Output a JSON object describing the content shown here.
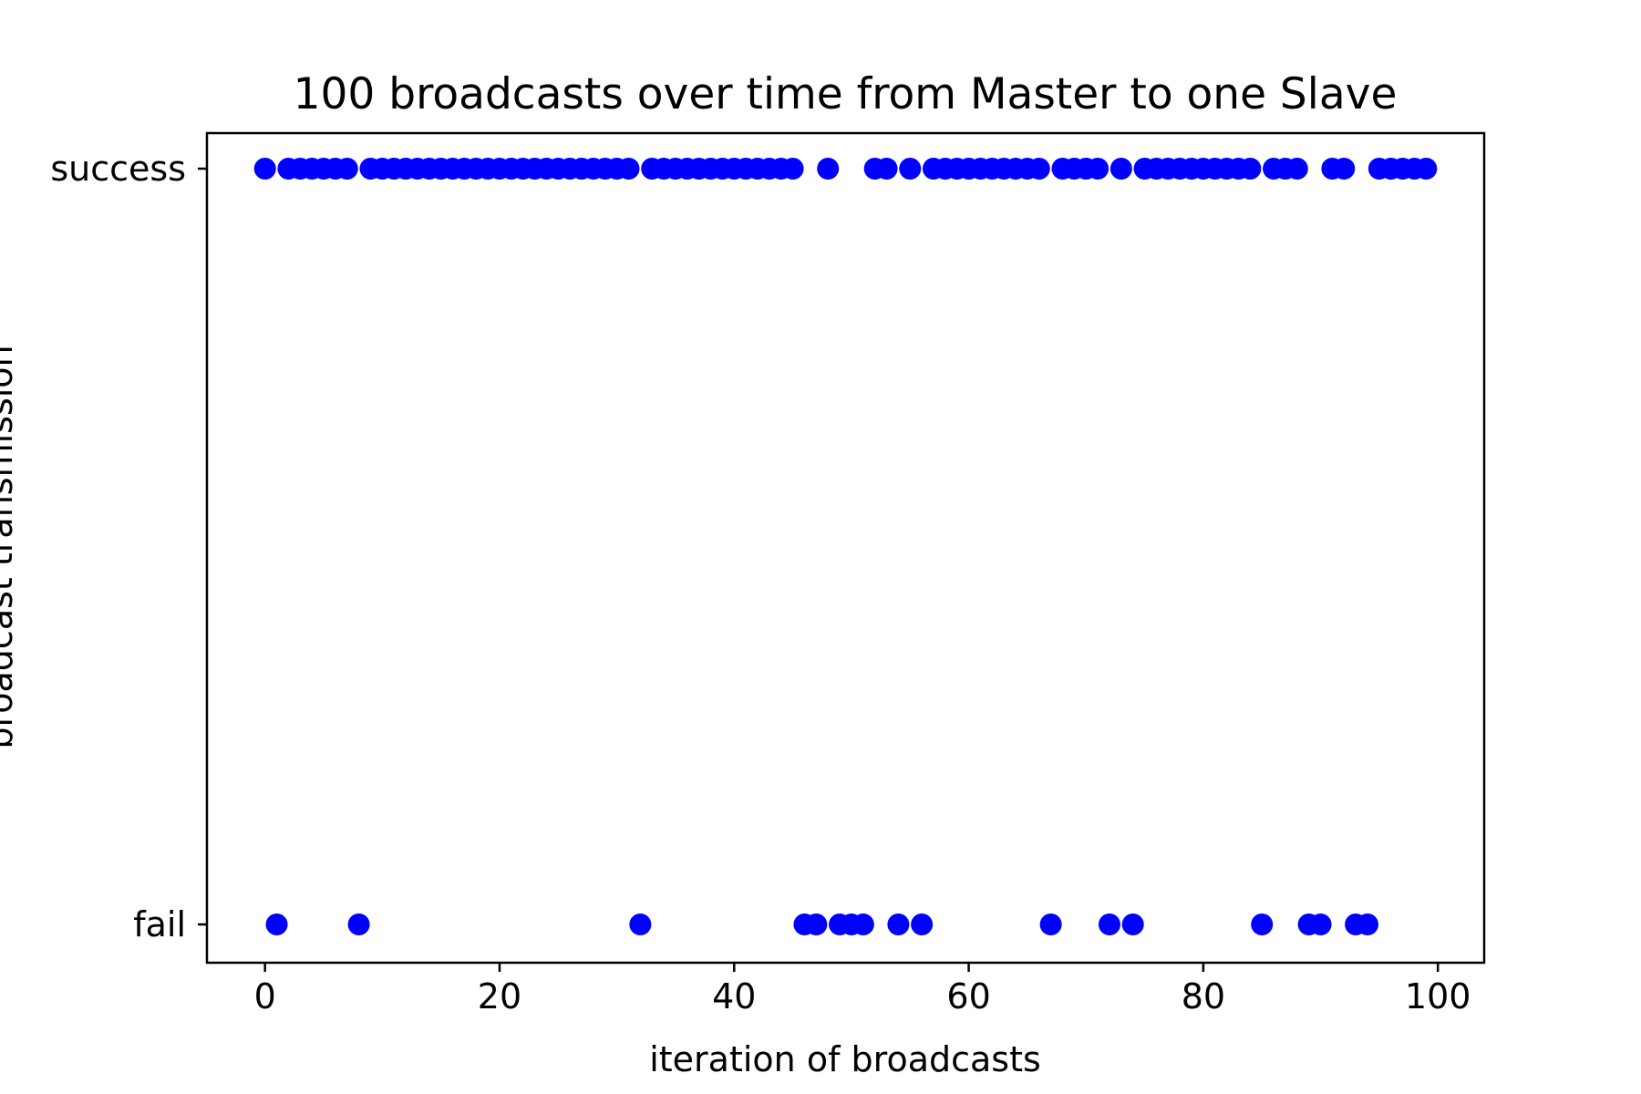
{
  "chart_data": {
    "type": "scatter",
    "title": "100 broadcasts over time from Master to one Slave",
    "xlabel": "iteration of broadcasts",
    "ylabel": "broadcast transmission",
    "xlim": [
      -4.95,
      103.95
    ],
    "x_ticks": [
      0,
      20,
      40,
      60,
      80,
      100
    ],
    "y_categories": [
      "fail",
      "success"
    ],
    "grid": false,
    "marker_color": "#0000ff",
    "series": [
      {
        "points": [
          {
            "x": 0,
            "y": "success"
          },
          {
            "x": 1,
            "y": "fail"
          },
          {
            "x": 2,
            "y": "success"
          },
          {
            "x": 3,
            "y": "success"
          },
          {
            "x": 4,
            "y": "success"
          },
          {
            "x": 5,
            "y": "success"
          },
          {
            "x": 6,
            "y": "success"
          },
          {
            "x": 7,
            "y": "success"
          },
          {
            "x": 8,
            "y": "fail"
          },
          {
            "x": 9,
            "y": "success"
          },
          {
            "x": 10,
            "y": "success"
          },
          {
            "x": 11,
            "y": "success"
          },
          {
            "x": 12,
            "y": "success"
          },
          {
            "x": 13,
            "y": "success"
          },
          {
            "x": 14,
            "y": "success"
          },
          {
            "x": 15,
            "y": "success"
          },
          {
            "x": 16,
            "y": "success"
          },
          {
            "x": 17,
            "y": "success"
          },
          {
            "x": 18,
            "y": "success"
          },
          {
            "x": 19,
            "y": "success"
          },
          {
            "x": 20,
            "y": "success"
          },
          {
            "x": 21,
            "y": "success"
          },
          {
            "x": 22,
            "y": "success"
          },
          {
            "x": 23,
            "y": "success"
          },
          {
            "x": 24,
            "y": "success"
          },
          {
            "x": 25,
            "y": "success"
          },
          {
            "x": 26,
            "y": "success"
          },
          {
            "x": 27,
            "y": "success"
          },
          {
            "x": 28,
            "y": "success"
          },
          {
            "x": 29,
            "y": "success"
          },
          {
            "x": 30,
            "y": "success"
          },
          {
            "x": 31,
            "y": "success"
          },
          {
            "x": 32,
            "y": "fail"
          },
          {
            "x": 33,
            "y": "success"
          },
          {
            "x": 34,
            "y": "success"
          },
          {
            "x": 35,
            "y": "success"
          },
          {
            "x": 36,
            "y": "success"
          },
          {
            "x": 37,
            "y": "success"
          },
          {
            "x": 38,
            "y": "success"
          },
          {
            "x": 39,
            "y": "success"
          },
          {
            "x": 40,
            "y": "success"
          },
          {
            "x": 41,
            "y": "success"
          },
          {
            "x": 42,
            "y": "success"
          },
          {
            "x": 43,
            "y": "success"
          },
          {
            "x": 44,
            "y": "success"
          },
          {
            "x": 45,
            "y": "success"
          },
          {
            "x": 46,
            "y": "fail"
          },
          {
            "x": 47,
            "y": "fail"
          },
          {
            "x": 48,
            "y": "success"
          },
          {
            "x": 49,
            "y": "fail"
          },
          {
            "x": 50,
            "y": "fail"
          },
          {
            "x": 51,
            "y": "fail"
          },
          {
            "x": 52,
            "y": "success"
          },
          {
            "x": 53,
            "y": "success"
          },
          {
            "x": 54,
            "y": "fail"
          },
          {
            "x": 55,
            "y": "success"
          },
          {
            "x": 56,
            "y": "fail"
          },
          {
            "x": 57,
            "y": "success"
          },
          {
            "x": 58,
            "y": "success"
          },
          {
            "x": 59,
            "y": "success"
          },
          {
            "x": 60,
            "y": "success"
          },
          {
            "x": 61,
            "y": "success"
          },
          {
            "x": 62,
            "y": "success"
          },
          {
            "x": 63,
            "y": "success"
          },
          {
            "x": 64,
            "y": "success"
          },
          {
            "x": 65,
            "y": "success"
          },
          {
            "x": 66,
            "y": "success"
          },
          {
            "x": 67,
            "y": "fail"
          },
          {
            "x": 68,
            "y": "success"
          },
          {
            "x": 69,
            "y": "success"
          },
          {
            "x": 70,
            "y": "success"
          },
          {
            "x": 71,
            "y": "success"
          },
          {
            "x": 72,
            "y": "fail"
          },
          {
            "x": 73,
            "y": "success"
          },
          {
            "x": 74,
            "y": "fail"
          },
          {
            "x": 75,
            "y": "success"
          },
          {
            "x": 76,
            "y": "success"
          },
          {
            "x": 77,
            "y": "success"
          },
          {
            "x": 78,
            "y": "success"
          },
          {
            "x": 79,
            "y": "success"
          },
          {
            "x": 80,
            "y": "success"
          },
          {
            "x": 81,
            "y": "success"
          },
          {
            "x": 82,
            "y": "success"
          },
          {
            "x": 83,
            "y": "success"
          },
          {
            "x": 84,
            "y": "success"
          },
          {
            "x": 85,
            "y": "fail"
          },
          {
            "x": 86,
            "y": "success"
          },
          {
            "x": 87,
            "y": "success"
          },
          {
            "x": 88,
            "y": "success"
          },
          {
            "x": 89,
            "y": "fail"
          },
          {
            "x": 90,
            "y": "fail"
          },
          {
            "x": 91,
            "y": "success"
          },
          {
            "x": 92,
            "y": "success"
          },
          {
            "x": 93,
            "y": "fail"
          },
          {
            "x": 94,
            "y": "fail"
          },
          {
            "x": 95,
            "y": "success"
          },
          {
            "x": 96,
            "y": "success"
          },
          {
            "x": 97,
            "y": "success"
          },
          {
            "x": 98,
            "y": "success"
          },
          {
            "x": 99,
            "y": "success"
          }
        ]
      }
    ]
  }
}
